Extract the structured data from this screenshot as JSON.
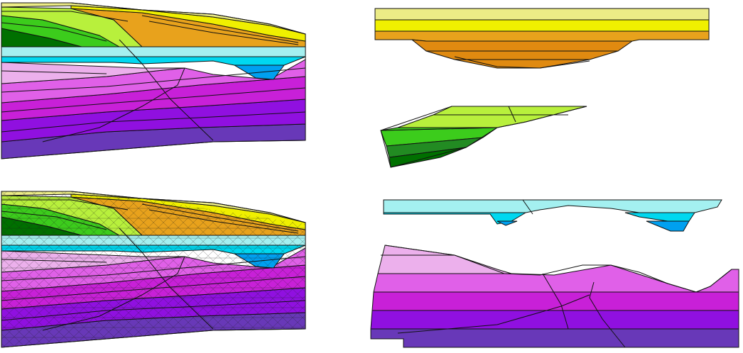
{
  "figure": {
    "panels": [
      {
        "id": "model-section",
        "kind": "layered cross-section"
      },
      {
        "id": "meshed-section",
        "kind": "triangulated mesh of same cross-section"
      },
      {
        "id": "unit-orange-yellow",
        "kind": "restored block"
      },
      {
        "id": "unit-green",
        "kind": "restored block"
      },
      {
        "id": "unit-cyan",
        "kind": "restored block"
      },
      {
        "id": "unit-magenta-purple",
        "kind": "restored block"
      }
    ],
    "colors": {
      "yellow_light": "#ecec86",
      "yellow": "#f0f000",
      "orange": "#e8a21c",
      "orange_dark": "#e08a10",
      "green_light": "#b8f03c",
      "green": "#3ccc1c",
      "green_dark": "#007000",
      "cyan_light": "#a4f0f0",
      "cyan": "#00d8f0",
      "blue": "#00a0f0",
      "pink": "#ecb0ec",
      "magenta": "#e060e8",
      "magenta_dark": "#c820d8",
      "purple": "#9010e0",
      "violet": "#6838b8"
    }
  }
}
